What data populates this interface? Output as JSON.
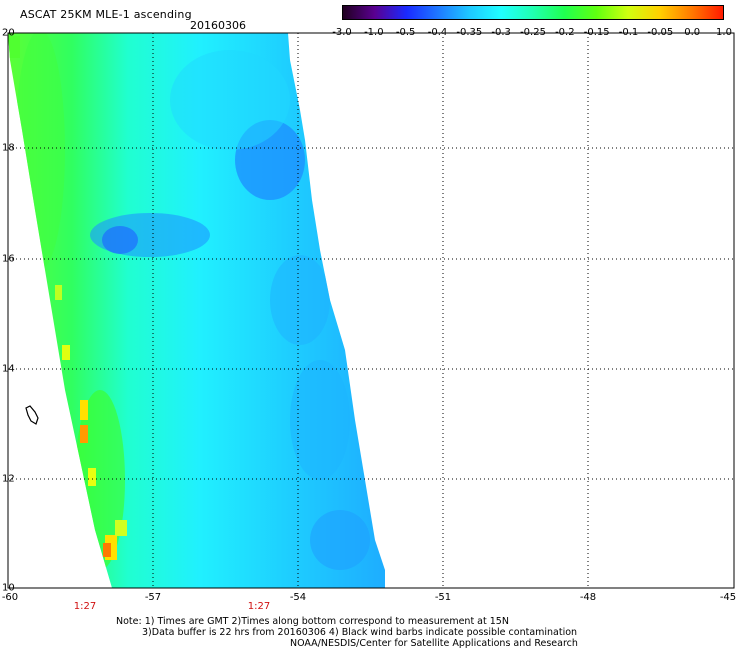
{
  "header": {
    "title": "ASCAT 25KM MLE-1 ascending",
    "date": "20160306"
  },
  "colorbar": {
    "ticks": [
      "-3.0",
      "-1.0",
      "-0.5",
      "-0.4",
      "-0.35",
      "-0.3",
      "-0.25",
      "-0.2",
      "-0.15",
      "-0.1",
      "-0.05",
      "0.0",
      "1.0"
    ],
    "colors": [
      "#200020",
      "#5a0090",
      "#1a2aff",
      "#1e78ff",
      "#1ec8ff",
      "#20ffff",
      "#20ffb0",
      "#20ff50",
      "#60ff10",
      "#d0ff10",
      "#ffd000",
      "#ff7a00",
      "#ff1a00"
    ]
  },
  "axes": {
    "lat_labels": [
      "20",
      "18",
      "16",
      "14",
      "12",
      "10"
    ],
    "lon_labels": [
      "-60",
      "-57",
      "-54",
      "-51",
      "-48",
      "-45"
    ],
    "time_labels": [
      "1:27",
      "1:27"
    ]
  },
  "notes": {
    "line1": "Note: 1) Times are GMT 2)Times along bottom correspond to measurement at 15N",
    "line2": "3)Data buffer is 22 hrs from 20160306 4) Black wind barbs indicate possible contamination",
    "line3": "NOAA/NESDIS/Center for Satellite Applications and Research"
  }
}
